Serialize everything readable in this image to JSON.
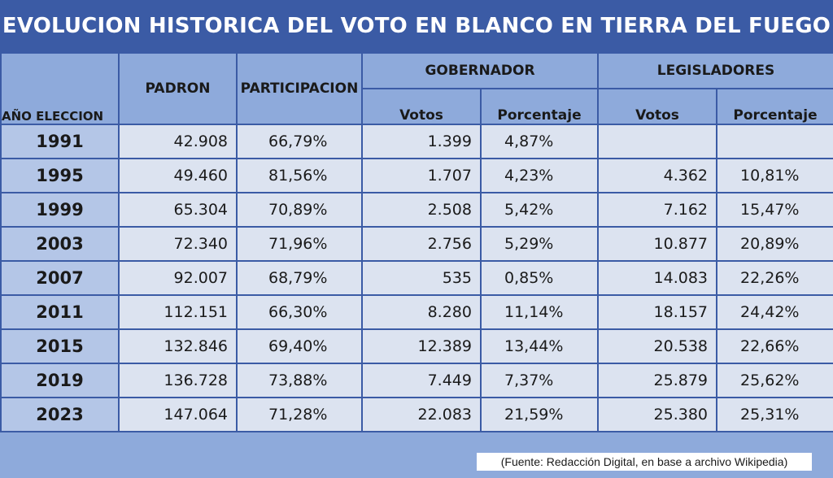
{
  "chart_data": {
    "type": "table",
    "title": "EVOLUCION HISTORICA DEL VOTO EN BLANCO EN TIERRA DEL FUEGO",
    "headers": {
      "year": "AÑO ELECCION",
      "padron": "PADRON",
      "participacion": "PARTICIPACION",
      "gobernador": "GOBERNADOR",
      "legisladores": "LEGISLADORES",
      "votos": "Votos",
      "porcentaje": "Porcentaje"
    },
    "rows": [
      {
        "year": "1991",
        "padron": "42.908",
        "participacion": "66,79%",
        "gob_votos": "1.399",
        "gob_pct": "4,87%",
        "leg_votos": "",
        "leg_pct": ""
      },
      {
        "year": "1995",
        "padron": "49.460",
        "participacion": "81,56%",
        "gob_votos": "1.707",
        "gob_pct": "4,23%",
        "leg_votos": "4.362",
        "leg_pct": "10,81%"
      },
      {
        "year": "1999",
        "padron": "65.304",
        "participacion": "70,89%",
        "gob_votos": "2.508",
        "gob_pct": "5,42%",
        "leg_votos": "7.162",
        "leg_pct": "15,47%"
      },
      {
        "year": "2003",
        "padron": "72.340",
        "participacion": "71,96%",
        "gob_votos": "2.756",
        "gob_pct": "5,29%",
        "leg_votos": "10.877",
        "leg_pct": "20,89%"
      },
      {
        "year": "2007",
        "padron": "92.007",
        "participacion": "68,79%",
        "gob_votos": "535",
        "gob_pct": "0,85%",
        "leg_votos": "14.083",
        "leg_pct": "22,26%"
      },
      {
        "year": "2011",
        "padron": "112.151",
        "participacion": "66,30%",
        "gob_votos": "8.280",
        "gob_pct": "11,14%",
        "leg_votos": "18.157",
        "leg_pct": "24,42%"
      },
      {
        "year": "2015",
        "padron": "132.846",
        "participacion": "69,40%",
        "gob_votos": "12.389",
        "gob_pct": "13,44%",
        "leg_votos": "20.538",
        "leg_pct": "22,66%"
      },
      {
        "year": "2019",
        "padron": "136.728",
        "participacion": "73,88%",
        "gob_votos": "7.449",
        "gob_pct": "7,37%",
        "leg_votos": "25.879",
        "leg_pct": "25,62%"
      },
      {
        "year": "2023",
        "padron": "147.064",
        "participacion": "71,28%",
        "gob_votos": "22.083",
        "gob_pct": "21,59%",
        "leg_votos": "25.380",
        "leg_pct": "25,31%"
      }
    ],
    "source": "(Fuente: Redacción Digital, en base a archivo Wikipedia)"
  }
}
